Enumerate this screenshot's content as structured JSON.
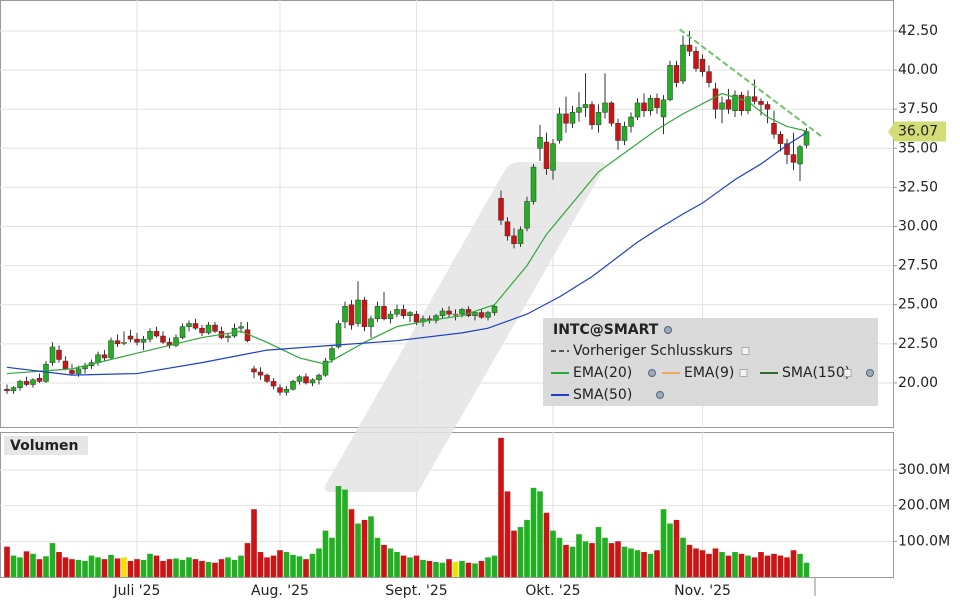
{
  "chart_data": {
    "type": "candlestick",
    "categories": [
      null,
      null,
      null,
      null,
      null,
      null,
      null,
      null,
      null,
      null,
      null,
      null,
      null,
      null,
      null,
      null,
      null,
      null,
      null,
      null,
      "Juli '25",
      null,
      null,
      null,
      null,
      null,
      null,
      null,
      null,
      null,
      null,
      null,
      null,
      null,
      null,
      null,
      null,
      null,
      null,
      null,
      null,
      null,
      "Aug. '25",
      null,
      null,
      null,
      null,
      null,
      null,
      null,
      null,
      null,
      null,
      null,
      null,
      null,
      null,
      null,
      null,
      null,
      null,
      null,
      null,
      "Sept. '25",
      null,
      null,
      null,
      null,
      null,
      null,
      null,
      null,
      null,
      null,
      null,
      null,
      null,
      null,
      null,
      null,
      null,
      null,
      null,
      null,
      "Okt. '25",
      null,
      null,
      null,
      null,
      null,
      null,
      null,
      null,
      null,
      null,
      null,
      null,
      null,
      null,
      null,
      null,
      null,
      null,
      null,
      null,
      null,
      null,
      "Nov. '25",
      null,
      null,
      null,
      null,
      null,
      null,
      null,
      null,
      null,
      null,
      null,
      null,
      null,
      null,
      null,
      null
    ],
    "ohlc": [
      [
        19.6,
        19.9,
        19.3,
        19.5
      ],
      [
        19.5,
        19.8,
        19.3,
        19.7
      ],
      [
        19.7,
        20.2,
        19.5,
        20.1
      ],
      [
        20.1,
        20.4,
        19.8,
        19.9
      ],
      [
        19.9,
        20.3,
        19.7,
        20.2
      ],
      [
        20.3,
        20.6,
        20.0,
        20.1
      ],
      [
        20.1,
        21.4,
        20.0,
        21.2
      ],
      [
        21.3,
        22.6,
        21.1,
        22.3
      ],
      [
        22.1,
        22.4,
        21.3,
        21.5
      ],
      [
        21.4,
        21.7,
        20.8,
        20.9
      ],
      [
        20.8,
        21.2,
        20.5,
        20.6
      ],
      [
        20.6,
        21.1,
        20.4,
        20.9
      ],
      [
        20.9,
        21.3,
        20.6,
        21.1
      ],
      [
        21.1,
        21.5,
        20.9,
        21.3
      ],
      [
        21.3,
        22.0,
        21.1,
        21.8
      ],
      [
        21.8,
        22.1,
        21.4,
        21.6
      ],
      [
        21.6,
        22.9,
        21.5,
        22.7
      ],
      [
        22.7,
        23.1,
        22.3,
        22.5
      ],
      [
        22.6,
        23.3,
        22.4,
        22.6
      ],
      [
        23.0,
        23.4,
        22.6,
        22.8
      ],
      [
        22.8,
        23.2,
        22.4,
        22.6
      ],
      [
        22.6,
        23.0,
        22.1,
        22.8
      ],
      [
        22.8,
        23.5,
        22.6,
        23.3
      ],
      [
        23.3,
        23.6,
        22.9,
        23.0
      ],
      [
        23.0,
        23.3,
        22.5,
        22.6
      ],
      [
        22.6,
        22.9,
        22.2,
        22.4
      ],
      [
        22.4,
        23.1,
        22.3,
        22.9
      ],
      [
        22.9,
        23.8,
        22.8,
        23.6
      ],
      [
        23.6,
        24.0,
        23.3,
        23.8
      ],
      [
        23.8,
        24.1,
        23.4,
        23.5
      ],
      [
        23.5,
        23.7,
        23.0,
        23.2
      ],
      [
        23.2,
        23.9,
        23.1,
        23.7
      ],
      [
        23.7,
        23.9,
        23.2,
        23.3
      ],
      [
        23.3,
        23.6,
        22.8,
        22.9
      ],
      [
        22.9,
        23.2,
        22.6,
        23.0
      ],
      [
        23.0,
        23.8,
        22.9,
        23.5
      ],
      [
        23.5,
        23.9,
        23.2,
        23.6
      ],
      [
        23.4,
        23.9,
        22.6,
        22.7
      ],
      [
        20.9,
        21.1,
        20.3,
        20.7
      ],
      [
        20.7,
        21.0,
        20.2,
        20.5
      ],
      [
        20.5,
        20.6,
        20.0,
        20.1
      ],
      [
        20.1,
        20.3,
        19.6,
        19.8
      ],
      [
        19.7,
        19.9,
        19.2,
        19.4
      ],
      [
        19.4,
        19.8,
        19.2,
        19.6
      ],
      [
        19.6,
        20.2,
        19.5,
        20.1
      ],
      [
        20.1,
        20.5,
        19.9,
        20.4
      ],
      [
        20.4,
        20.6,
        19.9,
        20.0
      ],
      [
        20.0,
        20.3,
        19.8,
        20.2
      ],
      [
        20.2,
        20.6,
        19.9,
        20.5
      ],
      [
        20.5,
        21.6,
        20.4,
        21.4
      ],
      [
        21.5,
        22.4,
        21.3,
        22.2
      ],
      [
        22.3,
        24.0,
        22.2,
        23.8
      ],
      [
        23.9,
        25.2,
        23.5,
        24.9
      ],
      [
        25.0,
        25.3,
        23.4,
        23.7
      ],
      [
        23.8,
        26.5,
        23.6,
        25.3
      ],
      [
        25.3,
        25.5,
        23.3,
        23.6
      ],
      [
        23.6,
        24.3,
        22.9,
        24.1
      ],
      [
        24.1,
        25.2,
        23.9,
        24.9
      ],
      [
        24.9,
        25.8,
        24.0,
        24.1
      ],
      [
        24.1,
        24.6,
        23.8,
        24.4
      ],
      [
        24.4,
        25.0,
        24.2,
        24.7
      ],
      [
        24.7,
        25.0,
        24.1,
        24.3
      ],
      [
        24.3,
        24.6,
        23.9,
        24.5
      ],
      [
        24.4,
        24.6,
        23.7,
        23.9
      ],
      [
        23.9,
        24.3,
        23.6,
        24.1
      ],
      [
        24.1,
        24.3,
        23.8,
        24.0
      ],
      [
        24.0,
        24.4,
        23.8,
        24.3
      ],
      [
        24.3,
        24.8,
        24.1,
        24.6
      ],
      [
        24.6,
        24.9,
        24.2,
        24.4
      ],
      [
        24.4,
        24.7,
        24.0,
        24.4
      ],
      [
        24.4,
        24.8,
        24.2,
        24.7
      ],
      [
        24.7,
        24.9,
        24.2,
        24.3
      ],
      [
        24.3,
        24.6,
        24.0,
        24.5
      ],
      [
        24.5,
        24.7,
        24.1,
        24.2
      ],
      [
        24.2,
        24.6,
        24.0,
        24.5
      ],
      [
        24.5,
        25.0,
        24.3,
        24.9
      ],
      [
        31.8,
        32.3,
        30.1,
        30.4
      ],
      [
        30.3,
        30.6,
        29.1,
        29.4
      ],
      [
        29.4,
        29.9,
        28.6,
        28.9
      ],
      [
        28.9,
        30.0,
        28.7,
        29.8
      ],
      [
        29.9,
        31.9,
        29.7,
        31.6
      ],
      [
        31.6,
        34.0,
        31.4,
        33.8
      ],
      [
        35.0,
        36.5,
        34.2,
        35.7
      ],
      [
        35.4,
        36.0,
        33.3,
        33.7
      ],
      [
        33.6,
        35.6,
        33.0,
        35.3
      ],
      [
        35.5,
        37.6,
        35.3,
        37.2
      ],
      [
        37.2,
        38.3,
        36.0,
        36.6
      ],
      [
        36.6,
        37.7,
        36.3,
        37.3
      ],
      [
        37.3,
        38.6,
        36.7,
        37.6
      ],
      [
        37.6,
        39.8,
        37.0,
        37.8
      ],
      [
        37.8,
        38.0,
        36.2,
        36.5
      ],
      [
        36.5,
        37.8,
        36.0,
        37.3
      ],
      [
        37.3,
        39.8,
        36.9,
        37.9
      ],
      [
        37.9,
        38.0,
        36.4,
        36.6
      ],
      [
        36.6,
        36.9,
        34.9,
        35.5
      ],
      [
        35.5,
        36.7,
        35.2,
        36.4
      ],
      [
        36.4,
        37.3,
        36.0,
        37.0
      ],
      [
        37.0,
        38.2,
        36.8,
        37.9
      ],
      [
        37.9,
        38.5,
        37.0,
        37.4
      ],
      [
        37.4,
        38.4,
        37.1,
        38.2
      ],
      [
        38.2,
        38.5,
        37.2,
        37.6
      ],
      [
        37.0,
        38.4,
        35.9,
        38.1
      ],
      [
        38.1,
        40.6,
        38.0,
        40.3
      ],
      [
        40.3,
        40.6,
        38.9,
        39.2
      ],
      [
        39.3,
        42.2,
        39.1,
        41.6
      ],
      [
        41.6,
        42.5,
        40.9,
        41.2
      ],
      [
        41.2,
        41.5,
        39.9,
        40.1
      ],
      [
        40.7,
        41.0,
        39.6,
        39.9
      ],
      [
        39.9,
        40.3,
        38.9,
        39.2
      ],
      [
        38.8,
        39.2,
        36.9,
        37.5
      ],
      [
        37.5,
        38.3,
        36.6,
        37.9
      ],
      [
        38.1,
        38.8,
        37.2,
        37.5
      ],
      [
        37.4,
        38.7,
        37.0,
        38.4
      ],
      [
        38.4,
        38.6,
        37.1,
        37.4
      ],
      [
        37.4,
        38.7,
        37.2,
        38.3
      ],
      [
        38.3,
        39.4,
        37.8,
        38.0
      ],
      [
        38.0,
        38.2,
        37.1,
        37.8
      ],
      [
        37.8,
        38.0,
        36.6,
        37.5
      ],
      [
        36.6,
        37.4,
        35.6,
        35.9
      ],
      [
        35.9,
        36.1,
        34.8,
        35.3
      ],
      [
        35.3,
        35.6,
        34.0,
        34.6
      ],
      [
        34.6,
        36.0,
        33.6,
        34.1
      ],
      [
        34.0,
        35.2,
        32.9,
        35.1
      ],
      [
        35.2,
        36.3,
        35.0,
        36.07
      ]
    ],
    "up_color": "#22b022",
    "down_color": "#cc1414",
    "flat_color": "#f2e200",
    "ylim": [
      17.12,
      44.48
    ],
    "yticks": [
      {
        "value": 20,
        "label": "20.00"
      },
      {
        "value": 22.5,
        "label": "22.50"
      },
      {
        "value": 25,
        "label": "25.00"
      },
      {
        "value": 27.5,
        "label": "27.50"
      },
      {
        "value": 30,
        "label": "30.00"
      },
      {
        "value": 32.5,
        "label": "32.50"
      },
      {
        "value": 35,
        "label": "35.00"
      },
      {
        "value": 37.5,
        "label": "37.50"
      },
      {
        "value": 40,
        "label": "40.00"
      },
      {
        "value": 42.5,
        "label": "42.50"
      }
    ],
    "grid": true,
    "series": [
      {
        "name": "EMA(20)",
        "color": "#2ea83a",
        "x": [
          0,
          10,
          20,
          30,
          36,
          40,
          45,
          49,
          55,
          60,
          65,
          70,
          75,
          80,
          83,
          88,
          91,
          96,
          100,
          104,
          110,
          114,
          117,
          120,
          123
        ],
        "values": [
          20.6,
          20.9,
          21.9,
          22.9,
          23.3,
          22.6,
          21.6,
          21.2,
          22.6,
          23.6,
          24.0,
          24.3,
          25.0,
          27.5,
          29.5,
          32.0,
          33.5,
          35.0,
          36.2,
          37.2,
          38.5,
          38.0,
          37.0,
          36.4,
          36.1
        ]
      },
      {
        "name": "SMA(50)",
        "color": "#1f3fc8",
        "x": [
          0,
          10,
          20,
          30,
          40,
          50,
          60,
          70,
          74,
          80,
          85,
          90,
          97,
          100,
          104,
          107,
          112,
          116,
          120,
          123
        ],
        "values": [
          21.0,
          20.5,
          20.6,
          21.3,
          22.1,
          22.4,
          22.7,
          23.2,
          23.5,
          24.4,
          25.5,
          26.8,
          29.0,
          29.8,
          30.8,
          31.5,
          33.0,
          34.0,
          35.2,
          36.0
        ]
      }
    ],
    "trendline": {
      "color": "#6cc46c",
      "x": [
        103.5,
        125.5
      ],
      "values": [
        42.6,
        35.7
      ]
    },
    "legend": {
      "title": "INTC@SMART",
      "extra": [
        {
          "name": "Vorheriger Schlusskurs",
          "color": "#555555"
        },
        {
          "name": "EMA(9)",
          "color": "#f0a860"
        },
        {
          "name": "SMA(150)",
          "color": "#2e6b2e"
        }
      ]
    },
    "volume": {
      "title": "Volumen",
      "ylim": [
        0,
        406.5
      ],
      "yticks": [
        {
          "value": 100,
          "label": "100.0M"
        },
        {
          "value": 200,
          "label": "200.0M"
        },
        {
          "value": 300,
          "label": "300.0M"
        }
      ],
      "values": [
        85,
        60,
        55,
        72,
        65,
        50,
        58,
        95,
        70,
        55,
        50,
        48,
        45,
        60,
        55,
        50,
        62,
        52,
        55,
        45,
        50,
        48,
        65,
        60,
        45,
        50,
        52,
        48,
        55,
        50,
        45,
        42,
        40,
        50,
        55,
        48,
        60,
        95,
        190,
        70,
        55,
        60,
        75,
        70,
        62,
        58,
        50,
        65,
        80,
        130,
        110,
        255,
        245,
        190,
        150,
        160,
        170,
        110,
        90,
        80,
        70,
        60,
        55,
        60,
        48,
        45,
        42,
        40,
        50,
        42,
        45,
        40,
        38,
        45,
        55,
        60,
        390,
        240,
        130,
        140,
        160,
        250,
        240,
        180,
        130,
        110,
        90,
        85,
        120,
        100,
        95,
        140,
        110,
        95,
        100,
        85,
        80,
        75,
        70,
        65,
        75,
        190,
        150,
        160,
        110,
        90,
        80,
        75,
        65,
        80,
        70,
        60,
        70,
        65,
        60,
        55,
        70,
        60,
        65,
        60,
        55,
        75,
        65,
        40
      ]
    }
  }
}
